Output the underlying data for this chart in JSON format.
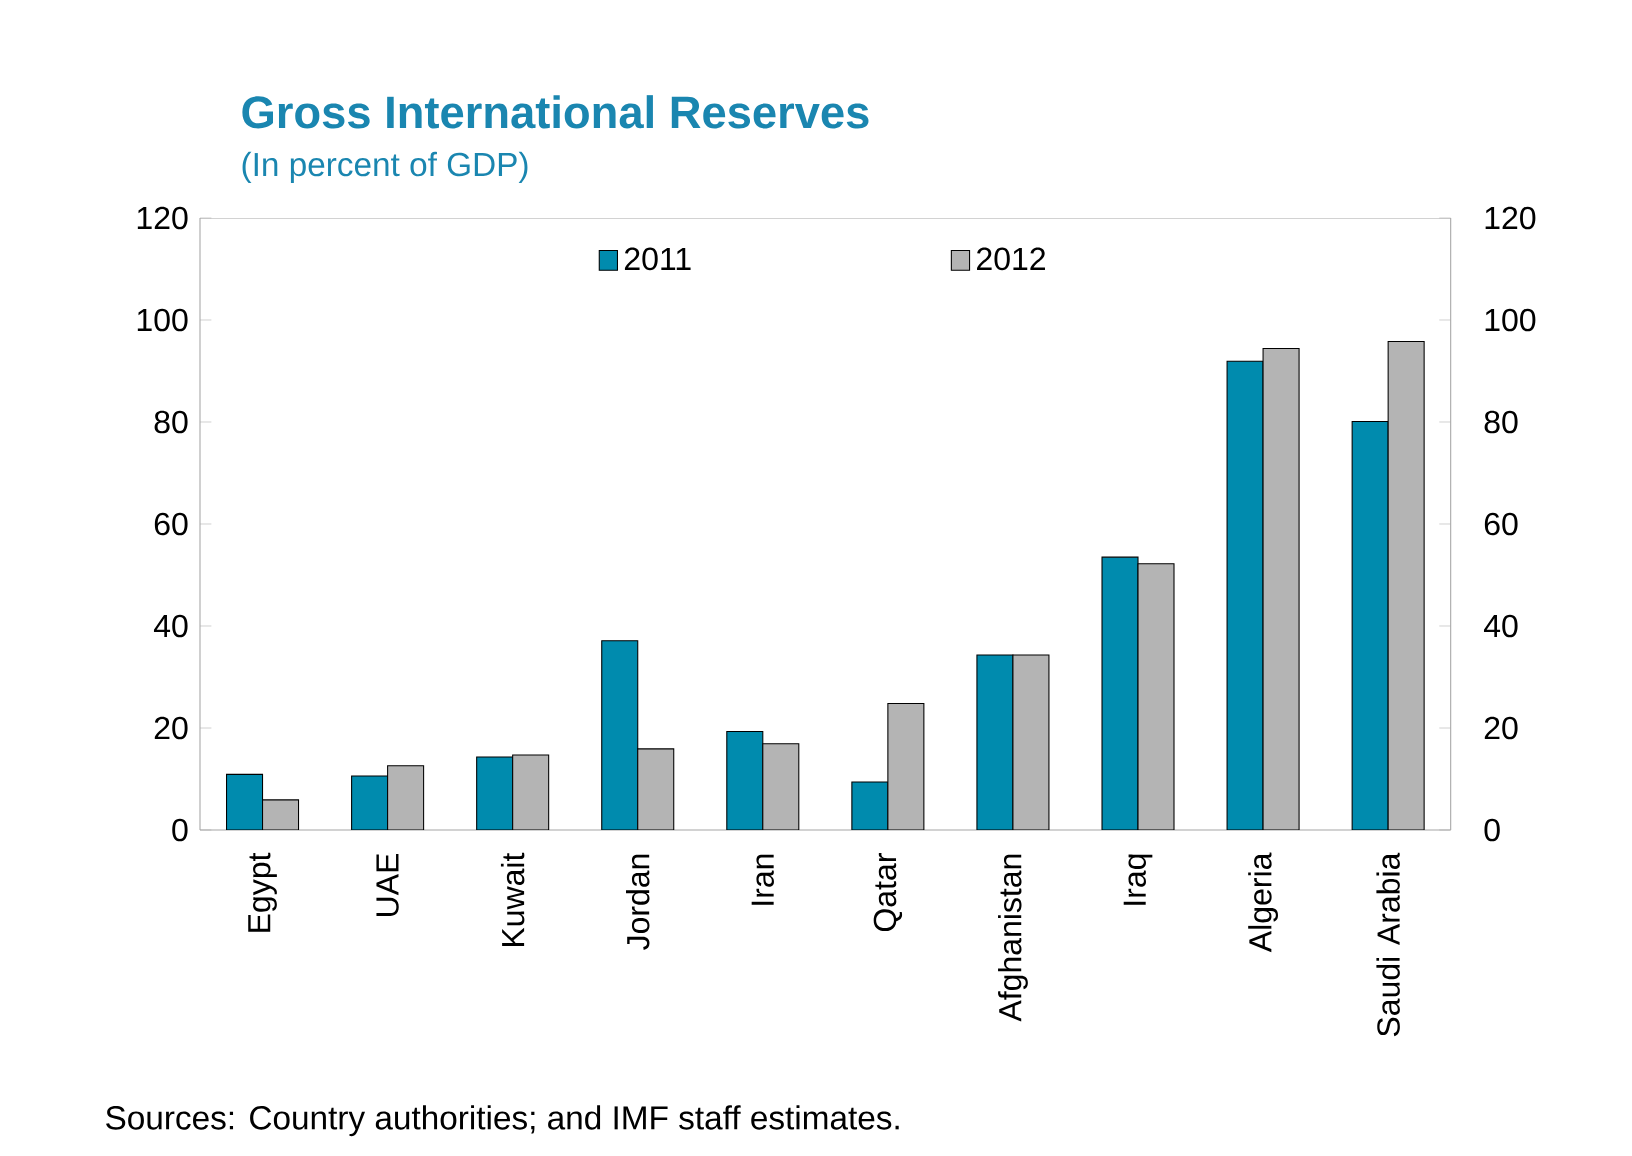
{
  "chart_data": {
    "type": "bar",
    "title": "Gross International  Reserves",
    "subtitle": "(In percent of GDP)",
    "categories": [
      "Egypt",
      "UAE",
      "Kuwait",
      "Jordan",
      "Iran",
      "Qatar",
      "Afghanistan",
      "Iraq",
      "Algeria",
      "Saudi Arabia"
    ],
    "series": [
      {
        "name": "2011",
        "color": "#008bae",
        "values": [
          10.9,
          10.6,
          14.3,
          37.1,
          19.3,
          9.4,
          34.3,
          53.5,
          91.9,
          80.1
        ]
      },
      {
        "name": "2012",
        "color": "#b4b4b4",
        "values": [
          5.9,
          12.6,
          14.7,
          15.9,
          16.9,
          24.8,
          34.3,
          52.2,
          94.4,
          95.8
        ]
      }
    ],
    "ylim": [
      0,
      120
    ],
    "yticks": [
      0,
      20,
      40,
      60,
      80,
      100,
      120
    ],
    "y2lim": [
      0,
      120
    ],
    "y2ticks": [
      0,
      20,
      40,
      60,
      80,
      100,
      120
    ],
    "legend": "top",
    "grid": false,
    "annotations": [
      "Sources: Country authorities; and IMF staff estimates."
    ]
  }
}
